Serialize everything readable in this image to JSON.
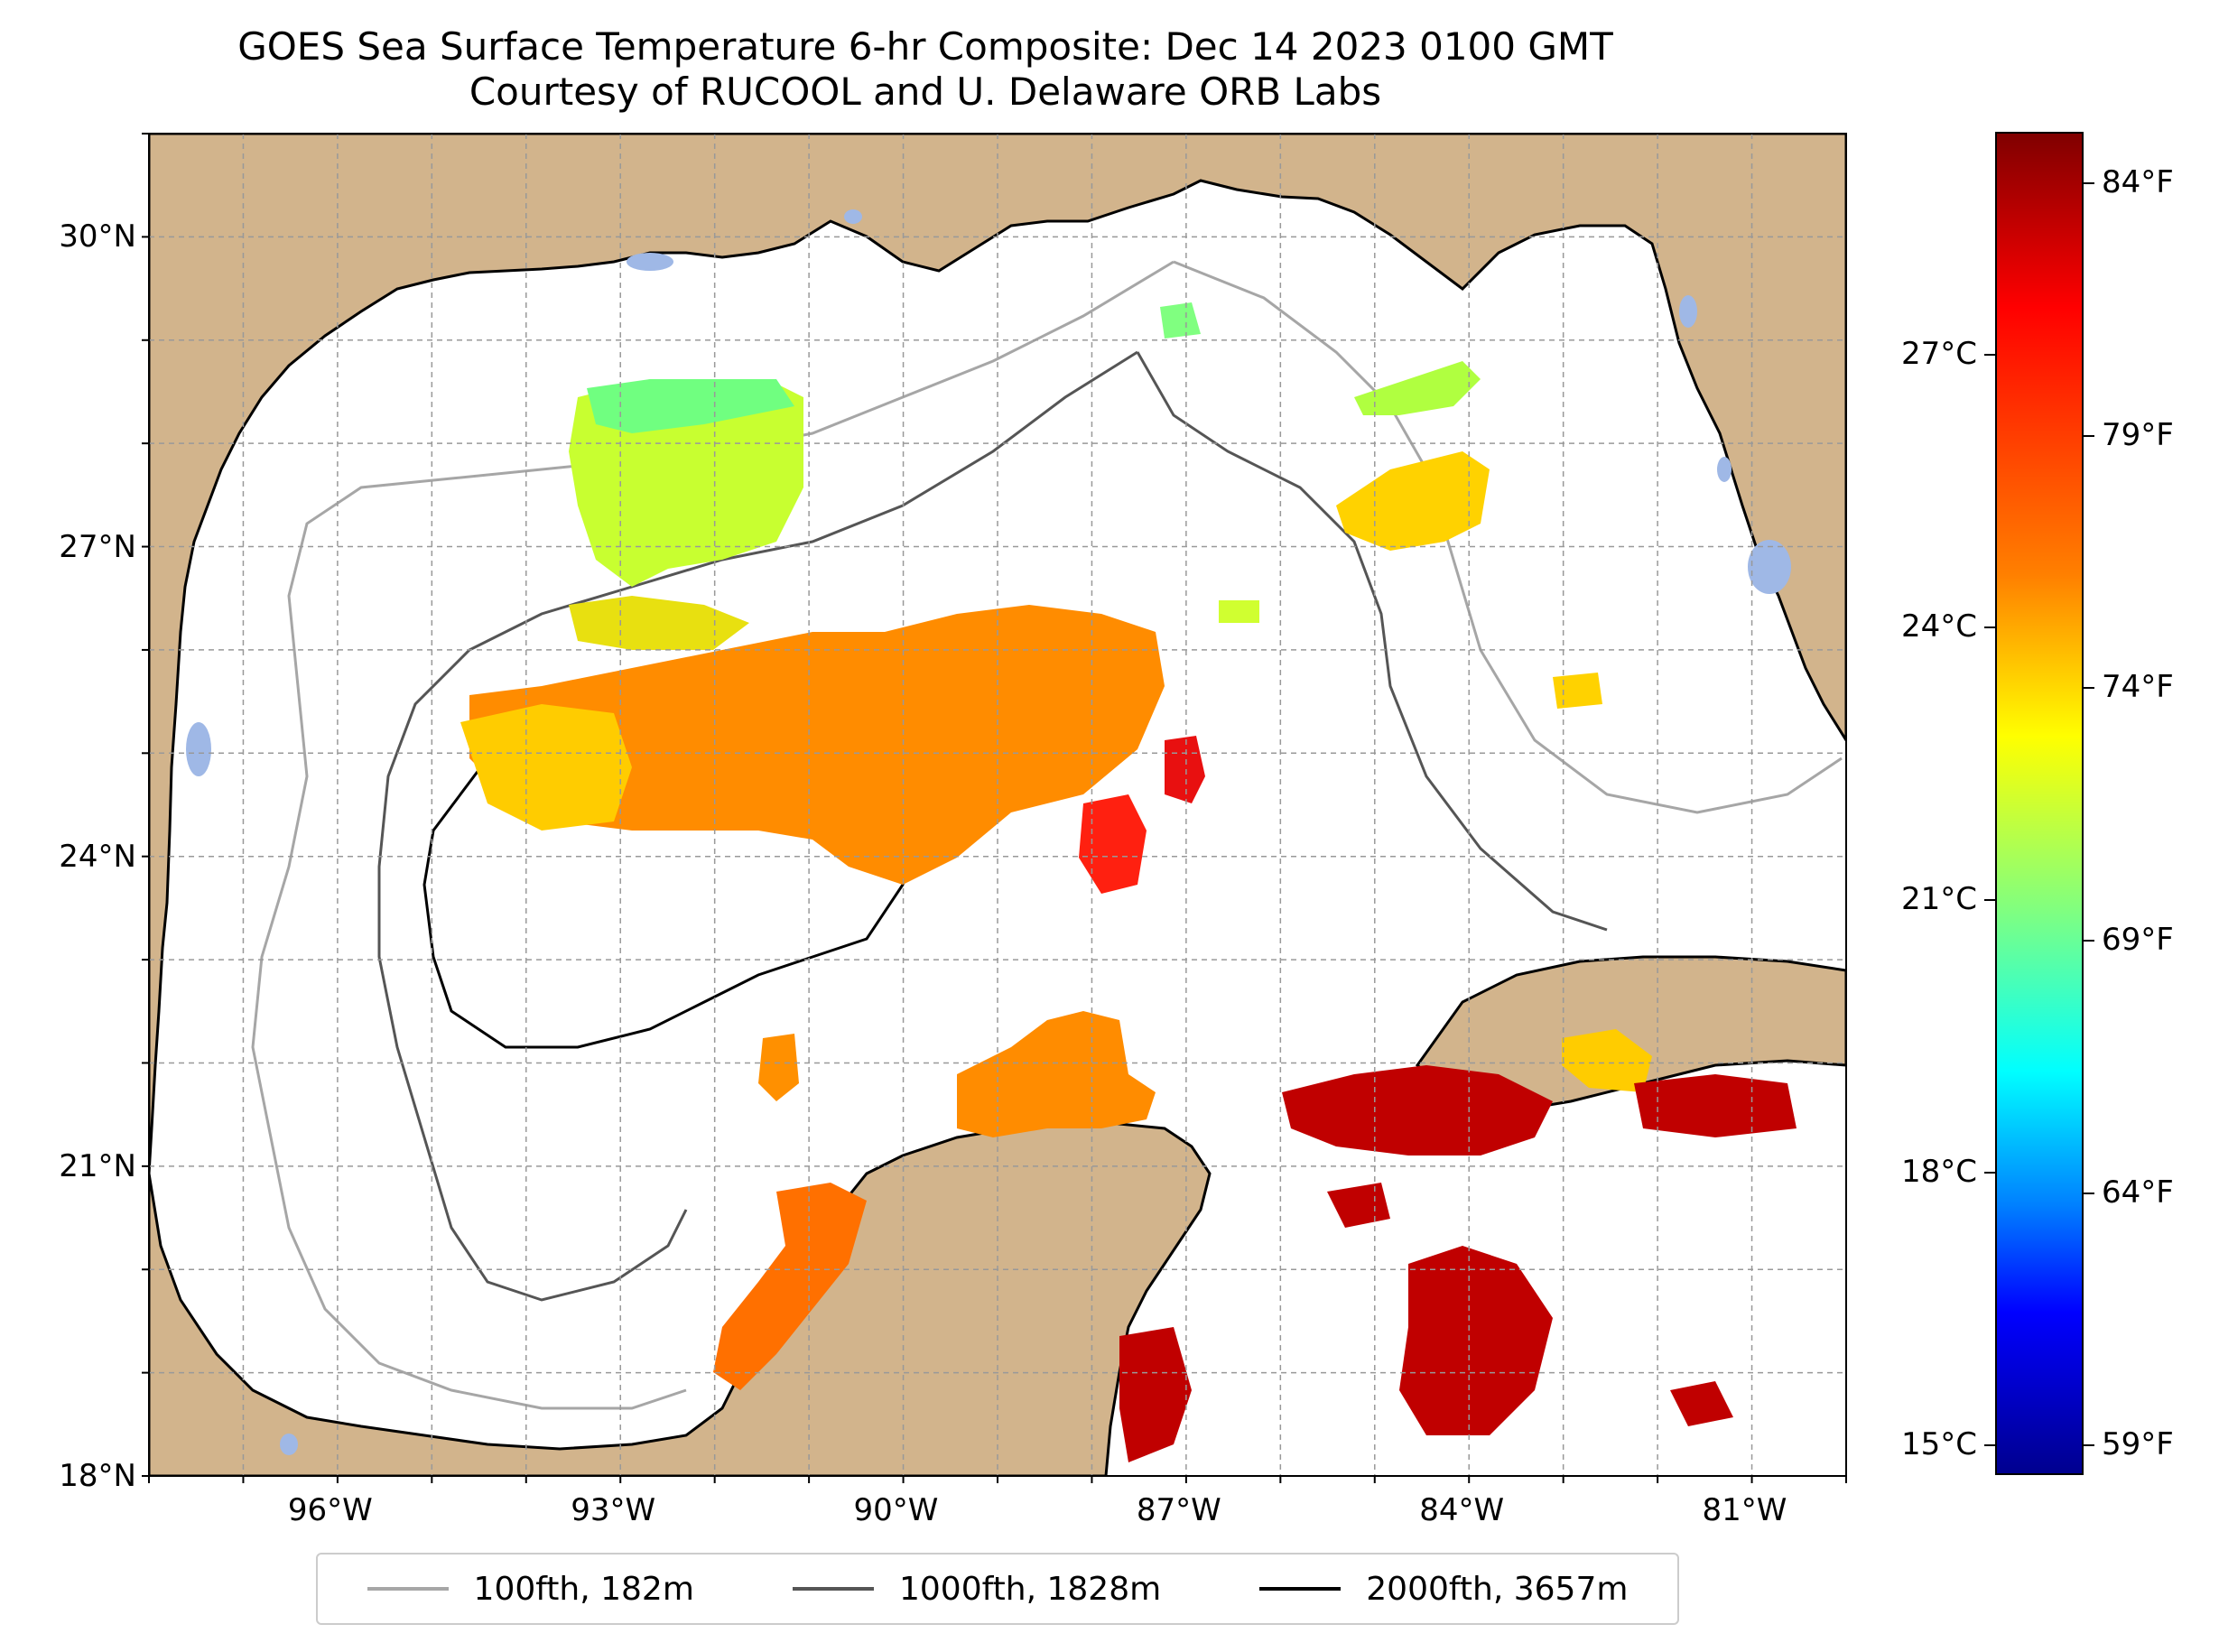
{
  "title": {
    "line1": "GOES Sea Surface Temperature 6-hr Composite: Dec 14 2023 0100 GMT",
    "line2": "Courtesy of RUCOOL and U. Delaware ORB Labs"
  },
  "map": {
    "lon_range": [
      -98,
      -80
    ],
    "lat_range": [
      18,
      31
    ],
    "lat_ticks": [
      {
        "lat": 30,
        "label": "30°N"
      },
      {
        "lat": 27,
        "label": "27°N"
      },
      {
        "lat": 24,
        "label": "24°N"
      },
      {
        "lat": 21,
        "label": "21°N"
      },
      {
        "lat": 18,
        "label": "18°N"
      }
    ],
    "lon_ticks": [
      {
        "lon": -96,
        "label": "96°W"
      },
      {
        "lon": -93,
        "label": "93°W"
      },
      {
        "lon": -90,
        "label": "90°W"
      },
      {
        "lon": -87,
        "label": "87°W"
      },
      {
        "lon": -84,
        "label": "84°W"
      },
      {
        "lon": -81,
        "label": "81°W"
      }
    ],
    "land_color": "#d2b48c",
    "lake_color": "#9fb8e6"
  },
  "legend": [
    {
      "label": "100fth, 182m",
      "color": "#a6a6a6"
    },
    {
      "label": "1000fth, 1828m",
      "color": "#555555"
    },
    {
      "label": "2000fth, 3657m",
      "color": "#000000"
    }
  ],
  "colorbar": {
    "celsius_ticks": [
      {
        "value": 27,
        "label": "27°C"
      },
      {
        "value": 24,
        "label": "24°C"
      },
      {
        "value": 21,
        "label": "21°C"
      },
      {
        "value": 18,
        "label": "18°C"
      },
      {
        "value": 15,
        "label": "15°C"
      }
    ],
    "fahrenheit_ticks": [
      {
        "value": 84,
        "label": "84°F"
      },
      {
        "value": 79,
        "label": "79°F"
      },
      {
        "value": 74,
        "label": "74°F"
      },
      {
        "value": 69,
        "label": "69°F"
      },
      {
        "value": 64,
        "label": "64°F"
      },
      {
        "value": 59,
        "label": "59°F"
      }
    ],
    "range_f": [
      58.4,
      85.0
    ]
  }
}
